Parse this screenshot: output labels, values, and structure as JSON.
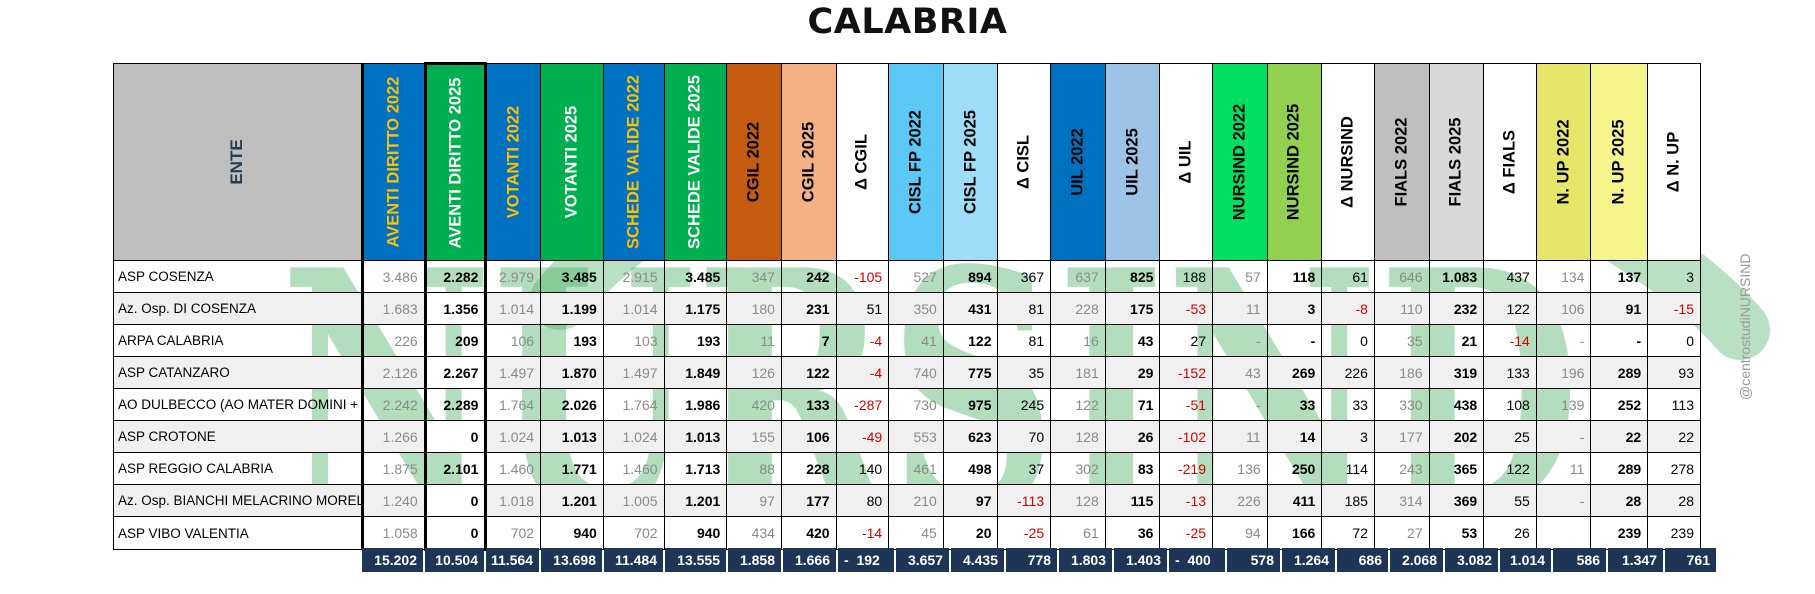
{
  "title": "CALABRIA",
  "credit": "@centrostudiNURSIND",
  "watermark_text": "NURSIND",
  "colors": {
    "watermark": "#34a853",
    "total_bar": "#1d3657",
    "negative": "#d40000"
  },
  "columns": [
    {
      "label": "ENTE",
      "bg": "#bfbfbf",
      "fg": "#243b55"
    },
    {
      "label": "AVENTI DIRITTO 2022",
      "bg": "#0070c0",
      "fg": "#ffc000"
    },
    {
      "label": "AVENTI DIRITTO 2025",
      "bg": "#00b050",
      "fg": "#ffffff"
    },
    {
      "label": "VOTANTI 2022",
      "bg": "#0070c0",
      "fg": "#ffc000"
    },
    {
      "label": "VOTANTI 2025",
      "bg": "#00b050",
      "fg": "#ffffff"
    },
    {
      "label": "SCHEDE VALIDE 2022",
      "bg": "#0070c0",
      "fg": "#ffc000"
    },
    {
      "label": "SCHEDE VALIDE 2025",
      "bg": "#00b050",
      "fg": "#ffffff"
    },
    {
      "label": "CGIL 2022",
      "bg": "#c55a11",
      "fg": "#000000"
    },
    {
      "label": "CGIL 2025",
      "bg": "#f4b183",
      "fg": "#000000"
    },
    {
      "label": "Δ CGIL",
      "bg": "#ffffff",
      "fg": "#000000"
    },
    {
      "label": "CISL FP 2022",
      "bg": "#5bc8f5",
      "fg": "#000000"
    },
    {
      "label": "CISL FP 2025",
      "bg": "#9edcf7",
      "fg": "#000000"
    },
    {
      "label": "Δ CISL",
      "bg": "#ffffff",
      "fg": "#000000"
    },
    {
      "label": "UIL 2022",
      "bg": "#0070c0",
      "fg": "#000000"
    },
    {
      "label": "UIL 2025",
      "bg": "#9dc3e6",
      "fg": "#000000"
    },
    {
      "label": "Δ UIL",
      "bg": "#ffffff",
      "fg": "#000000"
    },
    {
      "label": "NURSIND 2022",
      "bg": "#00e060",
      "fg": "#000000"
    },
    {
      "label": "NURSIND 2025",
      "bg": "#92d050",
      "fg": "#000000"
    },
    {
      "label": "Δ NURSIND",
      "bg": "#ffffff",
      "fg": "#000000"
    },
    {
      "label": "FIALS 2022",
      "bg": "#bfbfbf",
      "fg": "#000000"
    },
    {
      "label": "FIALS 2025",
      "bg": "#d9d9d9",
      "fg": "#000000"
    },
    {
      "label": "Δ FIALS",
      "bg": "#ffffff",
      "fg": "#000000"
    },
    {
      "label": "N. UP 2022",
      "bg": "#e6e66a",
      "fg": "#000000"
    },
    {
      "label": "N. UP 2025",
      "bg": "#f5f58c",
      "fg": "#000000"
    },
    {
      "label": "Δ N. UP",
      "bg": "#ffffff",
      "fg": "#000000"
    }
  ],
  "rows": [
    [
      "ASP COSENZA",
      "3.486",
      "2.282",
      "2.979",
      "3.485",
      "2.915",
      "3.485",
      "347",
      "242",
      "-105",
      "527",
      "894",
      "367",
      "637",
      "825",
      "188",
      "57",
      "118",
      "61",
      "646",
      "1.083",
      "437",
      "134",
      "137",
      "3"
    ],
    [
      "Az. Osp. DI COSENZA",
      "1.683",
      "1.356",
      "1.014",
      "1.199",
      "1.014",
      "1.175",
      "180",
      "231",
      "51",
      "350",
      "431",
      "81",
      "228",
      "175",
      "-53",
      "11",
      "3",
      "-8",
      "110",
      "232",
      "122",
      "106",
      "91",
      "-15"
    ],
    [
      "ARPA CALABRIA",
      "226",
      "209",
      "106",
      "193",
      "103",
      "193",
      "11",
      "7",
      "-4",
      "41",
      "122",
      "81",
      "16",
      "43",
      "27",
      "-",
      "-",
      "0",
      "35",
      "21",
      "-14",
      "-",
      "-",
      "0"
    ],
    [
      "ASP CATANZARO",
      "2.126",
      "2.267",
      "1.497",
      "1.870",
      "1.497",
      "1.849",
      "126",
      "122",
      "-4",
      "740",
      "775",
      "35",
      "181",
      "29",
      "-152",
      "43",
      "269",
      "226",
      "186",
      "319",
      "133",
      "196",
      "289",
      "93"
    ],
    [
      "AO DULBECCO (AO MATER DOMINI + AO",
      "2.242",
      "2.289",
      "1.764",
      "2.026",
      "1.764",
      "1.986",
      "420",
      "133",
      "-287",
      "730",
      "975",
      "245",
      "122",
      "71",
      "-51",
      "-",
      "33",
      "33",
      "330",
      "438",
      "108",
      "139",
      "252",
      "113"
    ],
    [
      "ASP CROTONE",
      "1.266",
      "0",
      "1.024",
      "1.013",
      "1.024",
      "1.013",
      "155",
      "106",
      "-49",
      "553",
      "623",
      "70",
      "128",
      "26",
      "-102",
      "11",
      "14",
      "3",
      "177",
      "202",
      "25",
      "-",
      "22",
      "22"
    ],
    [
      "ASP REGGIO CALABRIA",
      "1.875",
      "2.101",
      "1.460",
      "1.771",
      "1.460",
      "1.713",
      "88",
      "228",
      "140",
      "461",
      "498",
      "37",
      "302",
      "83",
      "-219",
      "136",
      "250",
      "114",
      "243",
      "365",
      "122",
      "11",
      "289",
      "278"
    ],
    [
      "Az. Osp. BIANCHI MELACRINO MORELLI",
      "1.240",
      "0",
      "1.018",
      "1.201",
      "1.005",
      "1.201",
      "97",
      "177",
      "80",
      "210",
      "97",
      "-113",
      "128",
      "115",
      "-13",
      "226",
      "411",
      "185",
      "314",
      "369",
      "55",
      "-",
      "28",
      "28"
    ],
    [
      "ASP VIBO VALENTIA",
      "1.058",
      "0",
      "702",
      "940",
      "702",
      "940",
      "434",
      "420",
      "-14",
      "45",
      "20",
      "-25",
      "61",
      "36",
      "-25",
      "94",
      "166",
      "72",
      "27",
      "53",
      "26",
      "",
      "239",
      "239"
    ]
  ],
  "totals": [
    "15.202",
    "10.504",
    "11.564",
    "13.698",
    "11.484",
    "13.555",
    "1.858",
    "1.666",
    "-  192",
    "3.657",
    "4.435",
    "778",
    "1.803",
    "1.403",
    "-  400",
    "578",
    "1.264",
    "686",
    "2.068",
    "3.082",
    "1.014",
    "586",
    "1.347",
    "761"
  ]
}
